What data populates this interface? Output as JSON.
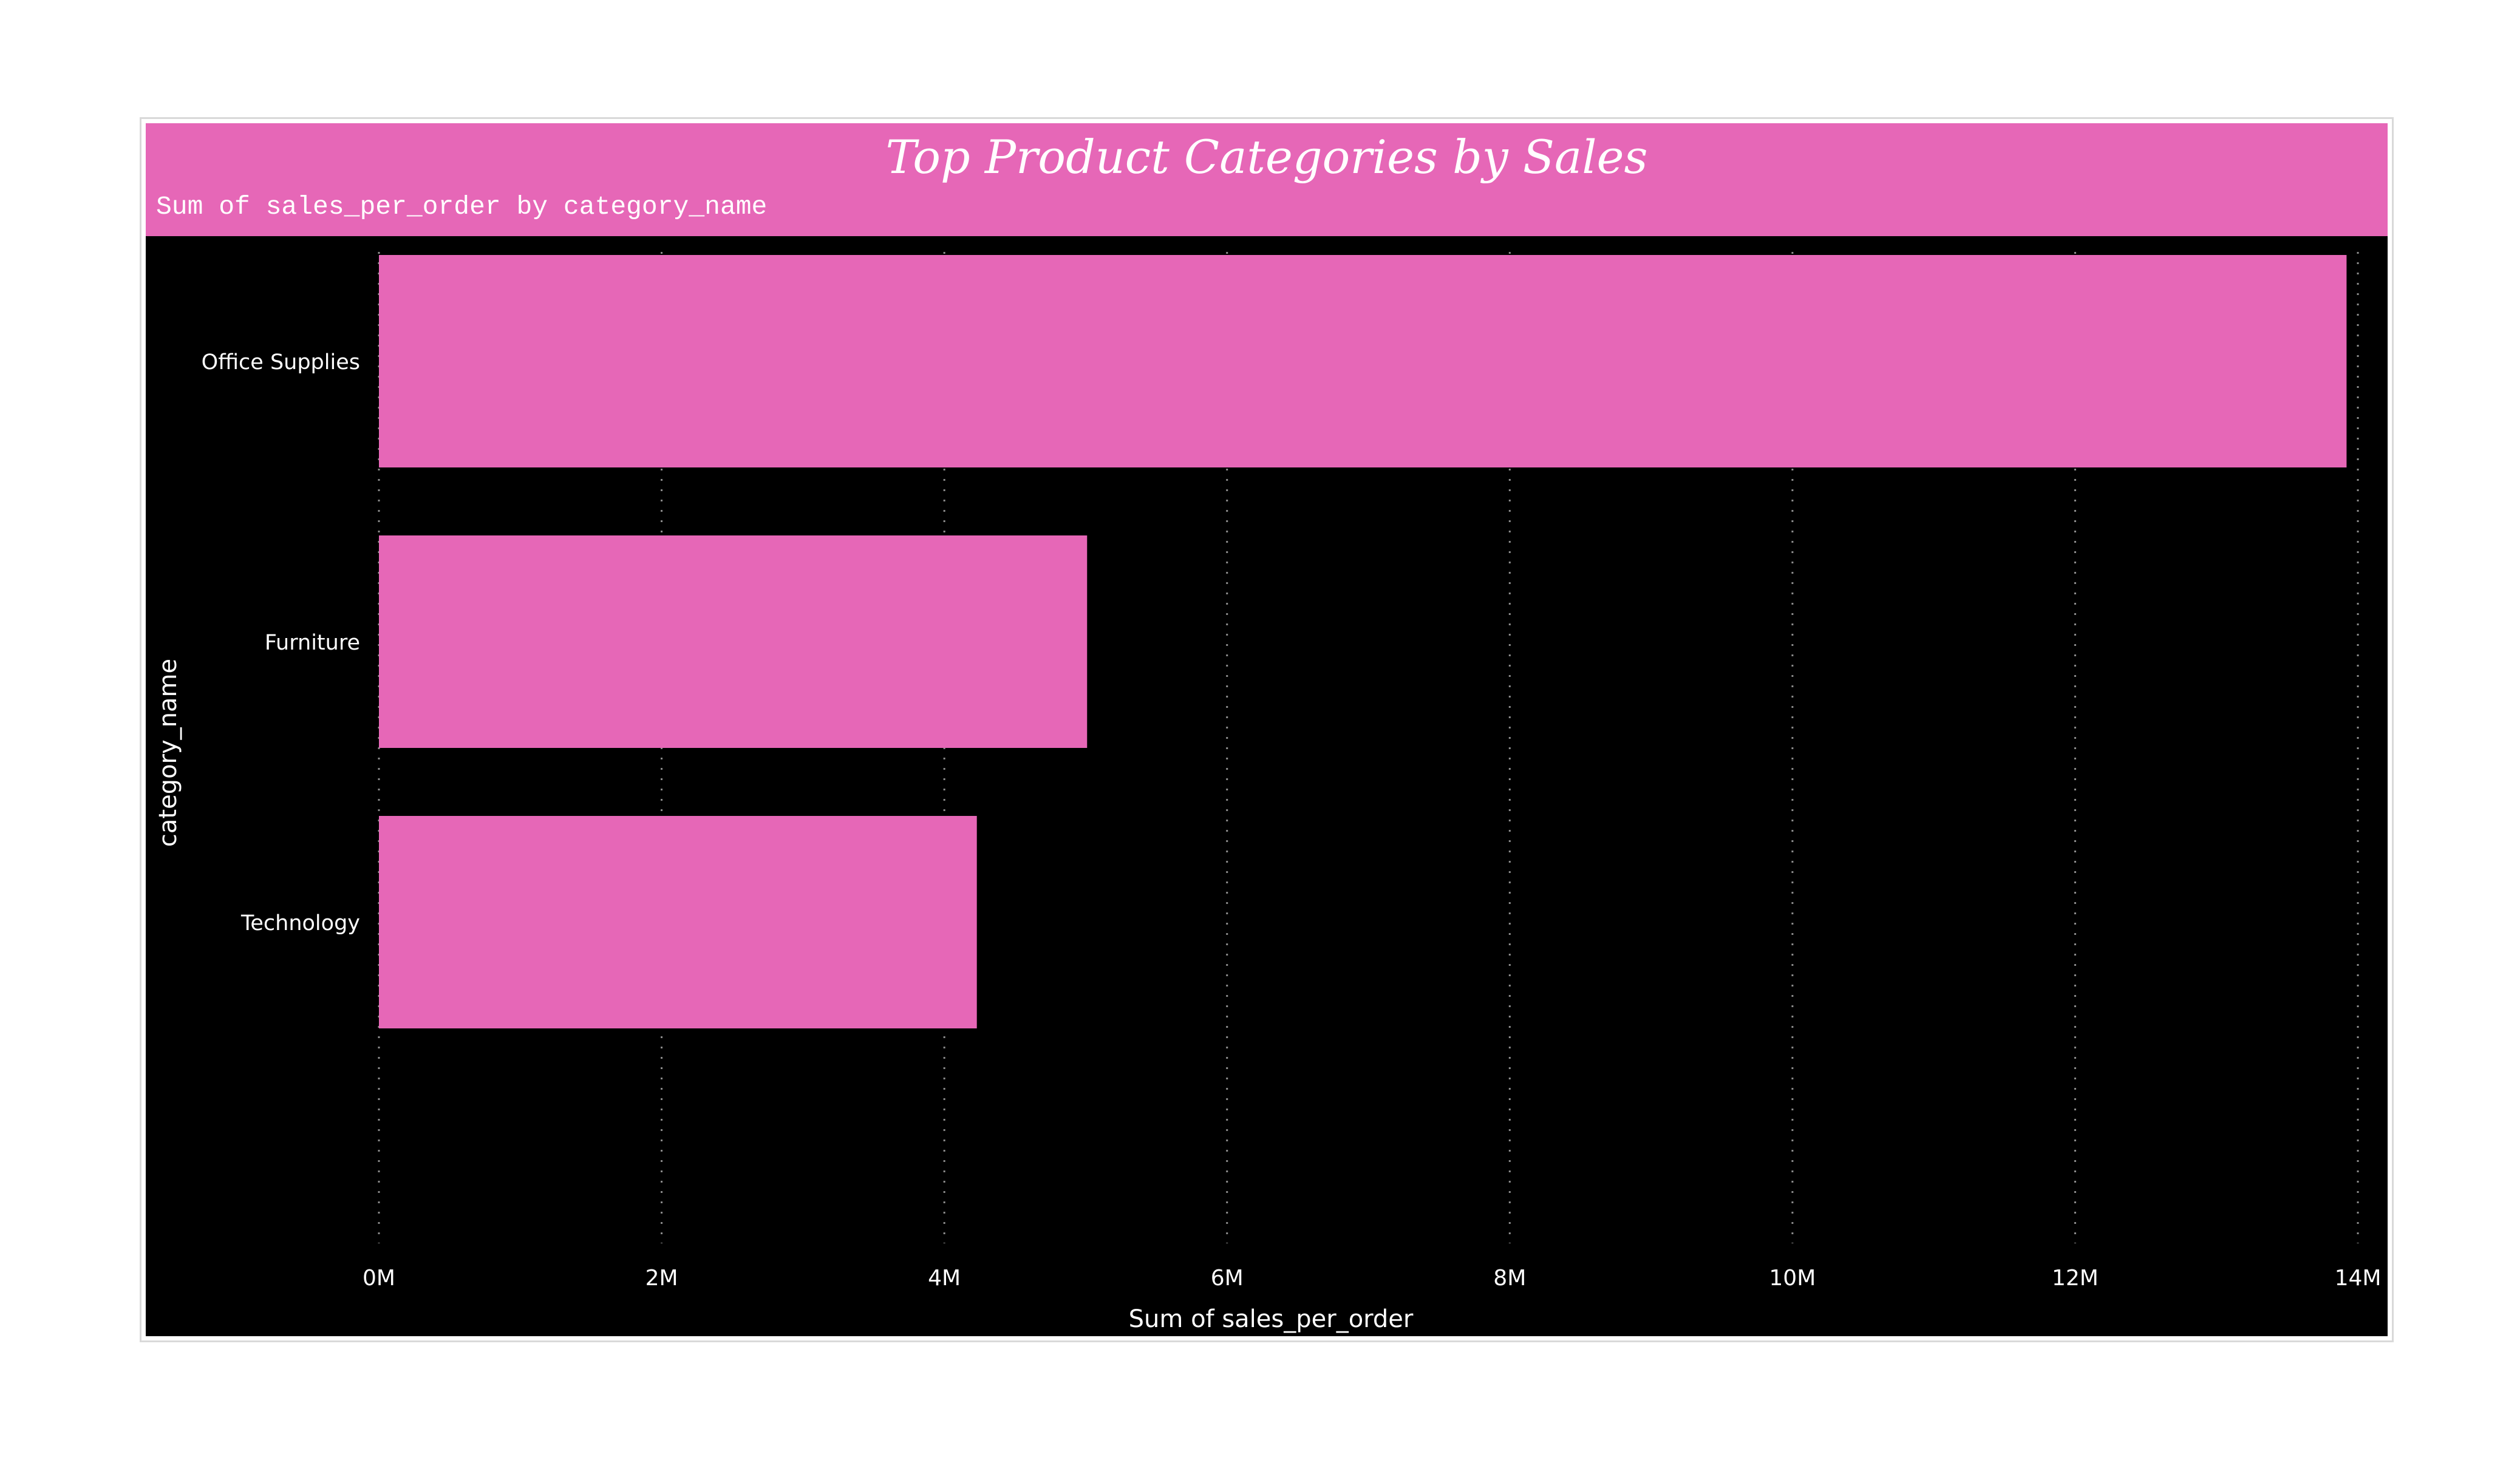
{
  "visual": {
    "title": "Top Product Categories by Sales",
    "subtitle": "Sum of sales_per_order by category_name"
  },
  "colors": {
    "bar": "#e667b7",
    "background": "#000000",
    "title_band": "#e667b7",
    "gridline": "#8c8c8c",
    "text": "#ffffff"
  },
  "chart_data": {
    "type": "bar",
    "orientation": "horizontal",
    "categories": [
      "Office Supplies",
      "Furniture",
      "Technology"
    ],
    "values": [
      13920000,
      5010000,
      4230000
    ],
    "xlabel": "Sum of sales_per_order",
    "ylabel": "category_name",
    "xlim": [
      0,
      14000000
    ],
    "xticks": [
      0,
      2000000,
      4000000,
      6000000,
      8000000,
      10000000,
      12000000,
      14000000
    ],
    "xtick_labels": [
      "0M",
      "2M",
      "4M",
      "6M",
      "8M",
      "10M",
      "12M",
      "14M"
    ],
    "grid": "vertical dotted",
    "legend": "none"
  }
}
